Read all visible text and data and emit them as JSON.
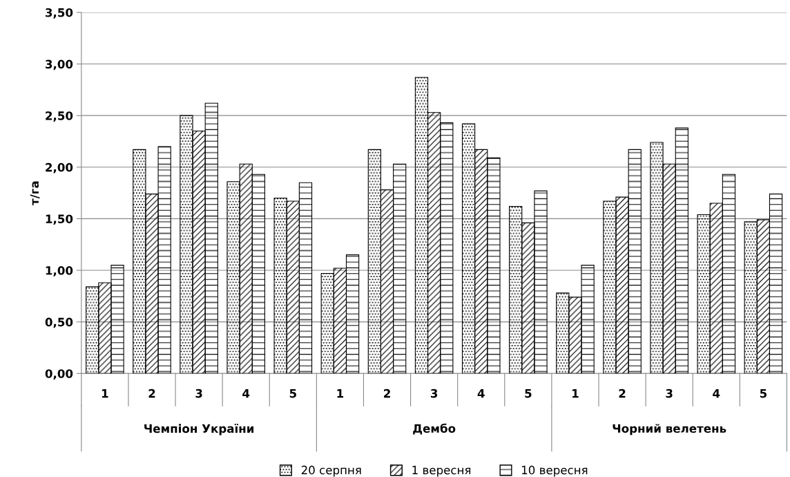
{
  "chart_data": {
    "type": "bar",
    "ylabel": "т/га",
    "categories": [
      "1",
      "2",
      "3",
      "4",
      "5",
      "1",
      "2",
      "3",
      "4",
      "5",
      "1",
      "2",
      "3",
      "4",
      "5"
    ],
    "series": [
      {
        "name": "20 серпня",
        "color": "#000000",
        "values": [
          0.84,
          2.17,
          2.5,
          1.86,
          1.7,
          0.97,
          2.17,
          2.87,
          2.42,
          1.62,
          0.78,
          1.67,
          2.24,
          1.54,
          1.47
        ]
      },
      {
        "name": "1 вересня",
        "color": "#000000",
        "values": [
          0.88,
          1.74,
          2.35,
          2.03,
          1.67,
          1.02,
          1.78,
          2.53,
          2.17,
          1.46,
          0.74,
          1.71,
          2.03,
          1.65,
          1.49
        ]
      },
      {
        "name": "10 вересня",
        "color": "#000000",
        "values": [
          1.05,
          2.2,
          2.62,
          1.93,
          1.85,
          1.15,
          2.03,
          2.43,
          2.09,
          1.77,
          1.05,
          2.17,
          2.38,
          1.93,
          1.74
        ]
      }
    ],
    "annotations": [
      "Чемпіон України",
      "Дембо",
      "Чорний велетень"
    ],
    "ylim": [
      0,
      3.5
    ],
    "yticks": [
      {
        "value": 0,
        "label": "0,00"
      },
      {
        "value": 0.5,
        "label": "0,50"
      },
      {
        "value": 1.0,
        "label": "1,00"
      },
      {
        "value": 1.5,
        "label": "1,50"
      },
      {
        "value": 2.0,
        "label": "2,00"
      },
      {
        "value": 2.5,
        "label": "2,50"
      },
      {
        "value": 3.0,
        "label": "3,00"
      },
      {
        "value": 3.5,
        "label": "3,50"
      }
    ],
    "grid": "y",
    "legend": "bottom"
  }
}
